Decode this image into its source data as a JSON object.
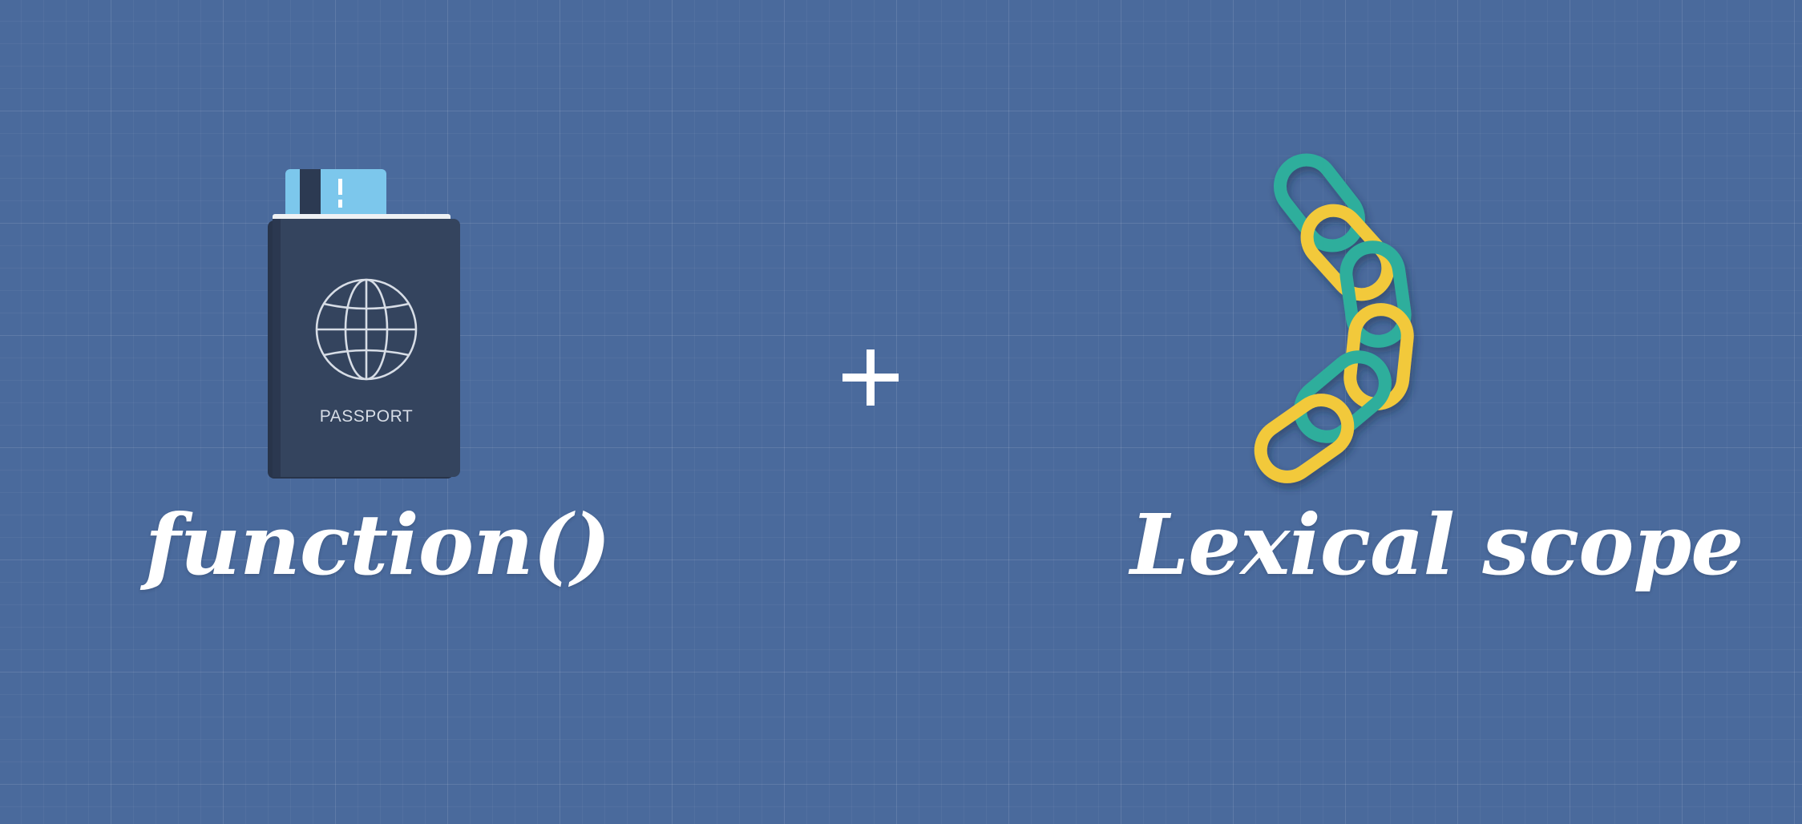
{
  "diagram": {
    "left": {
      "icon": "passport-icon",
      "icon_label": "PASSPORT",
      "caption": "function()"
    },
    "operator": "+",
    "right": {
      "icon": "chain-icon",
      "caption": "Lexical scope"
    }
  },
  "colors": {
    "background": "#4a6a9c",
    "passport_cover": "#34445e",
    "ticket": "#7cc7ec",
    "chain_teal": "#2fae9c",
    "chain_yellow": "#f2c93b",
    "text": "#ffffff"
  }
}
